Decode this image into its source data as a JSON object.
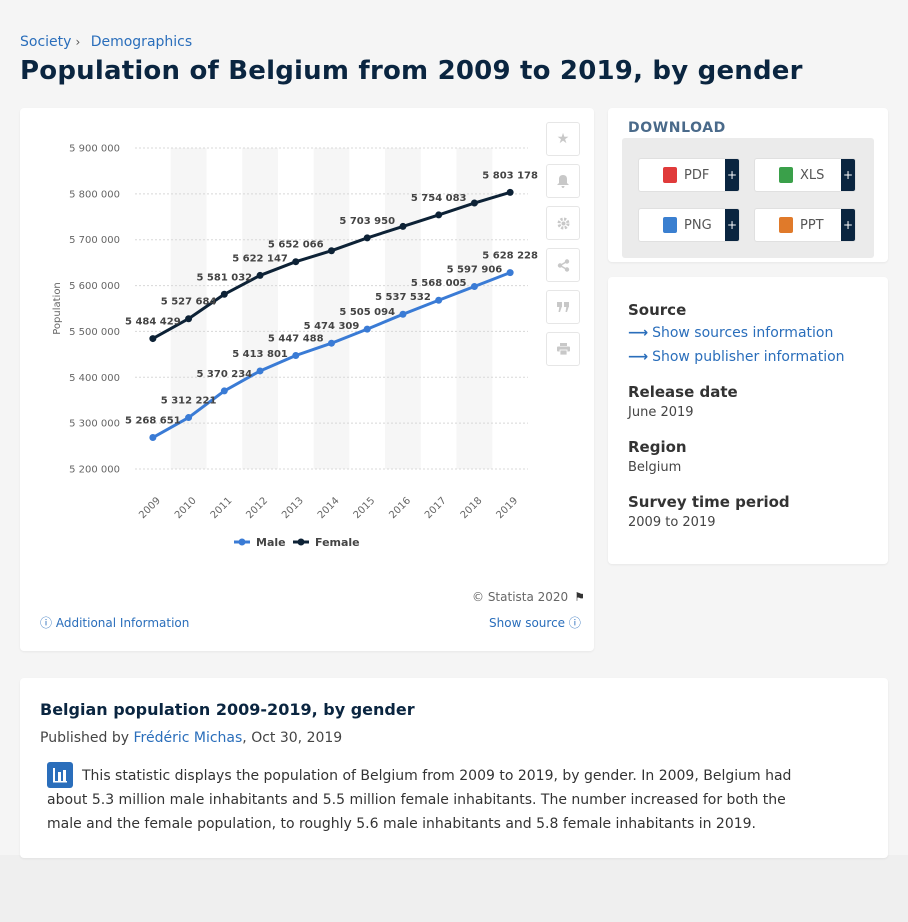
{
  "breadcrumb": {
    "items": [
      "Society",
      "Demographics"
    ],
    "separator": "›"
  },
  "page_title": "Population of Belgium from 2009 to 2019, by gender",
  "chart_tools": [
    "star-icon",
    "bell-icon",
    "gear-icon",
    "share-icon",
    "quote-icon",
    "print-icon"
  ],
  "chart_footer": {
    "copyright": "© Statista 2020",
    "additional_info": "Additional Information",
    "show_source": "Show source"
  },
  "download": {
    "heading": "DOWNLOAD",
    "buttons": [
      {
        "label": "PDF",
        "plus": "+",
        "color": "#e03a3a"
      },
      {
        "label": "XLS",
        "plus": "+",
        "color": "#3aa04a"
      },
      {
        "label": "PNG",
        "plus": "+",
        "color": "#3a7fd0"
      },
      {
        "label": "PPT",
        "plus": "+",
        "color": "#e07a2a"
      }
    ]
  },
  "meta": {
    "source_label": "Source",
    "show_sources": "Show sources information",
    "show_publisher": "Show publisher information",
    "release_label": "Release date",
    "release_value": "June 2019",
    "region_label": "Region",
    "region_value": "Belgium",
    "period_label": "Survey time period",
    "period_value": "2009 to 2019"
  },
  "description": {
    "title": "Belgian population 2009-2019, by gender",
    "published_prefix": "Published by",
    "author": "Frédéric Michas",
    "date": ", Oct 30, 2019",
    "text": "This statistic displays the population of Belgium from 2009 to 2019, by gender. In 2009, Belgium had about 5.3 million male inhabitants and 5.5 million female inhabitants. The number increased for both the male and the female population, to roughly 5.6 male inhabitants and 5.8 female inhabitants in 2019."
  },
  "chart_data": {
    "type": "line",
    "title": "",
    "xlabel": "",
    "ylabel": "Population",
    "categories": [
      "2009",
      "2010",
      "2011",
      "2012",
      "2013",
      "2014",
      "2015",
      "2016",
      "2017",
      "2018",
      "2019"
    ],
    "ylim": [
      5200000,
      5900000
    ],
    "yticks": [
      5200000,
      5300000,
      5400000,
      5500000,
      5600000,
      5700000,
      5800000,
      5900000
    ],
    "ytick_labels": [
      "5 200 000",
      "5 300 000",
      "5 400 000",
      "5 500 000",
      "5 600 000",
      "5 700 000",
      "5 800 000",
      "5 900 000"
    ],
    "grid": true,
    "legend_position": "bottom-center",
    "series": [
      {
        "name": "Male",
        "color": "#3a7bd5",
        "values": [
          5268651,
          5312221,
          5370234,
          5413801,
          5447488,
          5474309,
          5505094,
          5537532,
          5568005,
          5597906,
          5628228
        ],
        "labels": [
          "5 268 651",
          "5 312 221",
          "5 370 234",
          "5 413 801",
          "5 447 488",
          "5 474 309",
          "5 505 094",
          "5 537 532",
          "5 568 005",
          "5 597 906",
          "5 628 228"
        ]
      },
      {
        "name": "Female",
        "color": "#0d2236",
        "values": [
          5484429,
          5527684,
          5581032,
          5622147,
          5652066,
          5676000,
          5703950,
          5729000,
          5754083,
          5780000,
          5803178
        ],
        "labels": [
          "5 484 429",
          "5 527 684",
          "5 581 032",
          "5 622 147",
          "5 652 066",
          "",
          "5 703 950",
          "",
          "5 754 083",
          "",
          "5 803 178"
        ]
      }
    ]
  }
}
